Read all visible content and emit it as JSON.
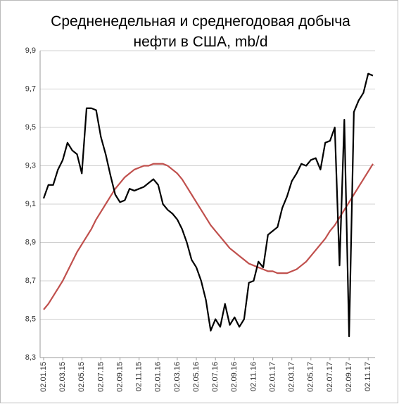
{
  "chart_data": {
    "type": "line",
    "title": "Средненедельная и среднегодовая добыча нефти в США, mb/d",
    "categories": [
      "02.01.15",
      null,
      null,
      null,
      "02.03.15",
      null,
      null,
      null,
      "02.05.15",
      null,
      null,
      null,
      "02.07.15",
      null,
      null,
      null,
      "02.09.15",
      null,
      null,
      null,
      "02.11.15",
      null,
      null,
      null,
      "02.01.16",
      null,
      null,
      null,
      "02.03.16",
      null,
      null,
      null,
      "02.05.16",
      null,
      null,
      null,
      "02.07.16",
      null,
      null,
      null,
      "02.09.16",
      null,
      null,
      null,
      "02.11.16",
      null,
      null,
      null,
      "02.01.17",
      null,
      null,
      null,
      "02.03.17",
      null,
      null,
      null,
      "02.05.17",
      null,
      null,
      null,
      "02.07.17",
      null,
      null,
      null,
      "02.09.17",
      null,
      null,
      null,
      "02.11.17",
      null
    ],
    "series": [
      {
        "color": "#000000",
        "values": [
          9.13,
          9.2,
          9.2,
          9.28,
          9.33,
          9.42,
          9.38,
          9.36,
          9.26,
          9.6,
          9.6,
          9.59,
          9.45,
          9.36,
          9.25,
          9.15,
          9.11,
          9.12,
          9.18,
          9.17,
          9.18,
          9.19,
          9.21,
          9.23,
          9.2,
          9.1,
          9.07,
          9.05,
          9.02,
          8.97,
          8.9,
          8.81,
          8.77,
          8.7,
          8.6,
          8.44,
          8.5,
          8.46,
          8.58,
          8.47,
          8.51,
          8.46,
          8.5,
          8.69,
          8.7,
          8.8,
          8.77,
          8.94,
          8.96,
          8.98,
          9.08,
          9.14,
          9.22,
          9.26,
          9.31,
          9.3,
          9.33,
          9.34,
          9.28,
          9.42,
          9.43,
          9.5,
          8.78,
          9.54,
          8.41,
          9.58,
          9.64,
          9.68,
          9.78,
          9.77
        ]
      },
      {
        "color": "#c0504d",
        "values": [
          8.55,
          8.58,
          8.62,
          8.66,
          8.7,
          8.75,
          8.8,
          8.85,
          8.89,
          8.93,
          8.97,
          9.02,
          9.06,
          9.1,
          9.14,
          9.18,
          9.21,
          9.24,
          9.26,
          9.28,
          9.29,
          9.3,
          9.3,
          9.31,
          9.31,
          9.31,
          9.3,
          9.28,
          9.26,
          9.23,
          9.19,
          9.15,
          9.11,
          9.07,
          9.03,
          8.99,
          8.96,
          8.93,
          8.9,
          8.87,
          8.85,
          8.83,
          8.81,
          8.79,
          8.78,
          8.77,
          8.76,
          8.75,
          8.75,
          8.74,
          8.74,
          8.74,
          8.75,
          8.76,
          8.78,
          8.8,
          8.83,
          8.86,
          8.89,
          8.92,
          8.96,
          8.99,
          9.03,
          9.07,
          9.11,
          9.15,
          9.19,
          9.23,
          9.27,
          9.31
        ]
      }
    ],
    "ylim": [
      8.3,
      9.9
    ],
    "yticks": [
      {
        "value": 8.3,
        "label": "8,3"
      },
      {
        "value": 8.5,
        "label": "8,5"
      },
      {
        "value": 8.7,
        "label": "8,7"
      },
      {
        "value": 8.9,
        "label": "8,9"
      },
      {
        "value": 9.1,
        "label": "9,1"
      },
      {
        "value": 9.3,
        "label": "9,3"
      },
      {
        "value": 9.5,
        "label": "9,5"
      },
      {
        "value": 9.7,
        "label": "9,7"
      },
      {
        "value": 9.9,
        "label": "9,9"
      }
    ],
    "grid": true
  }
}
